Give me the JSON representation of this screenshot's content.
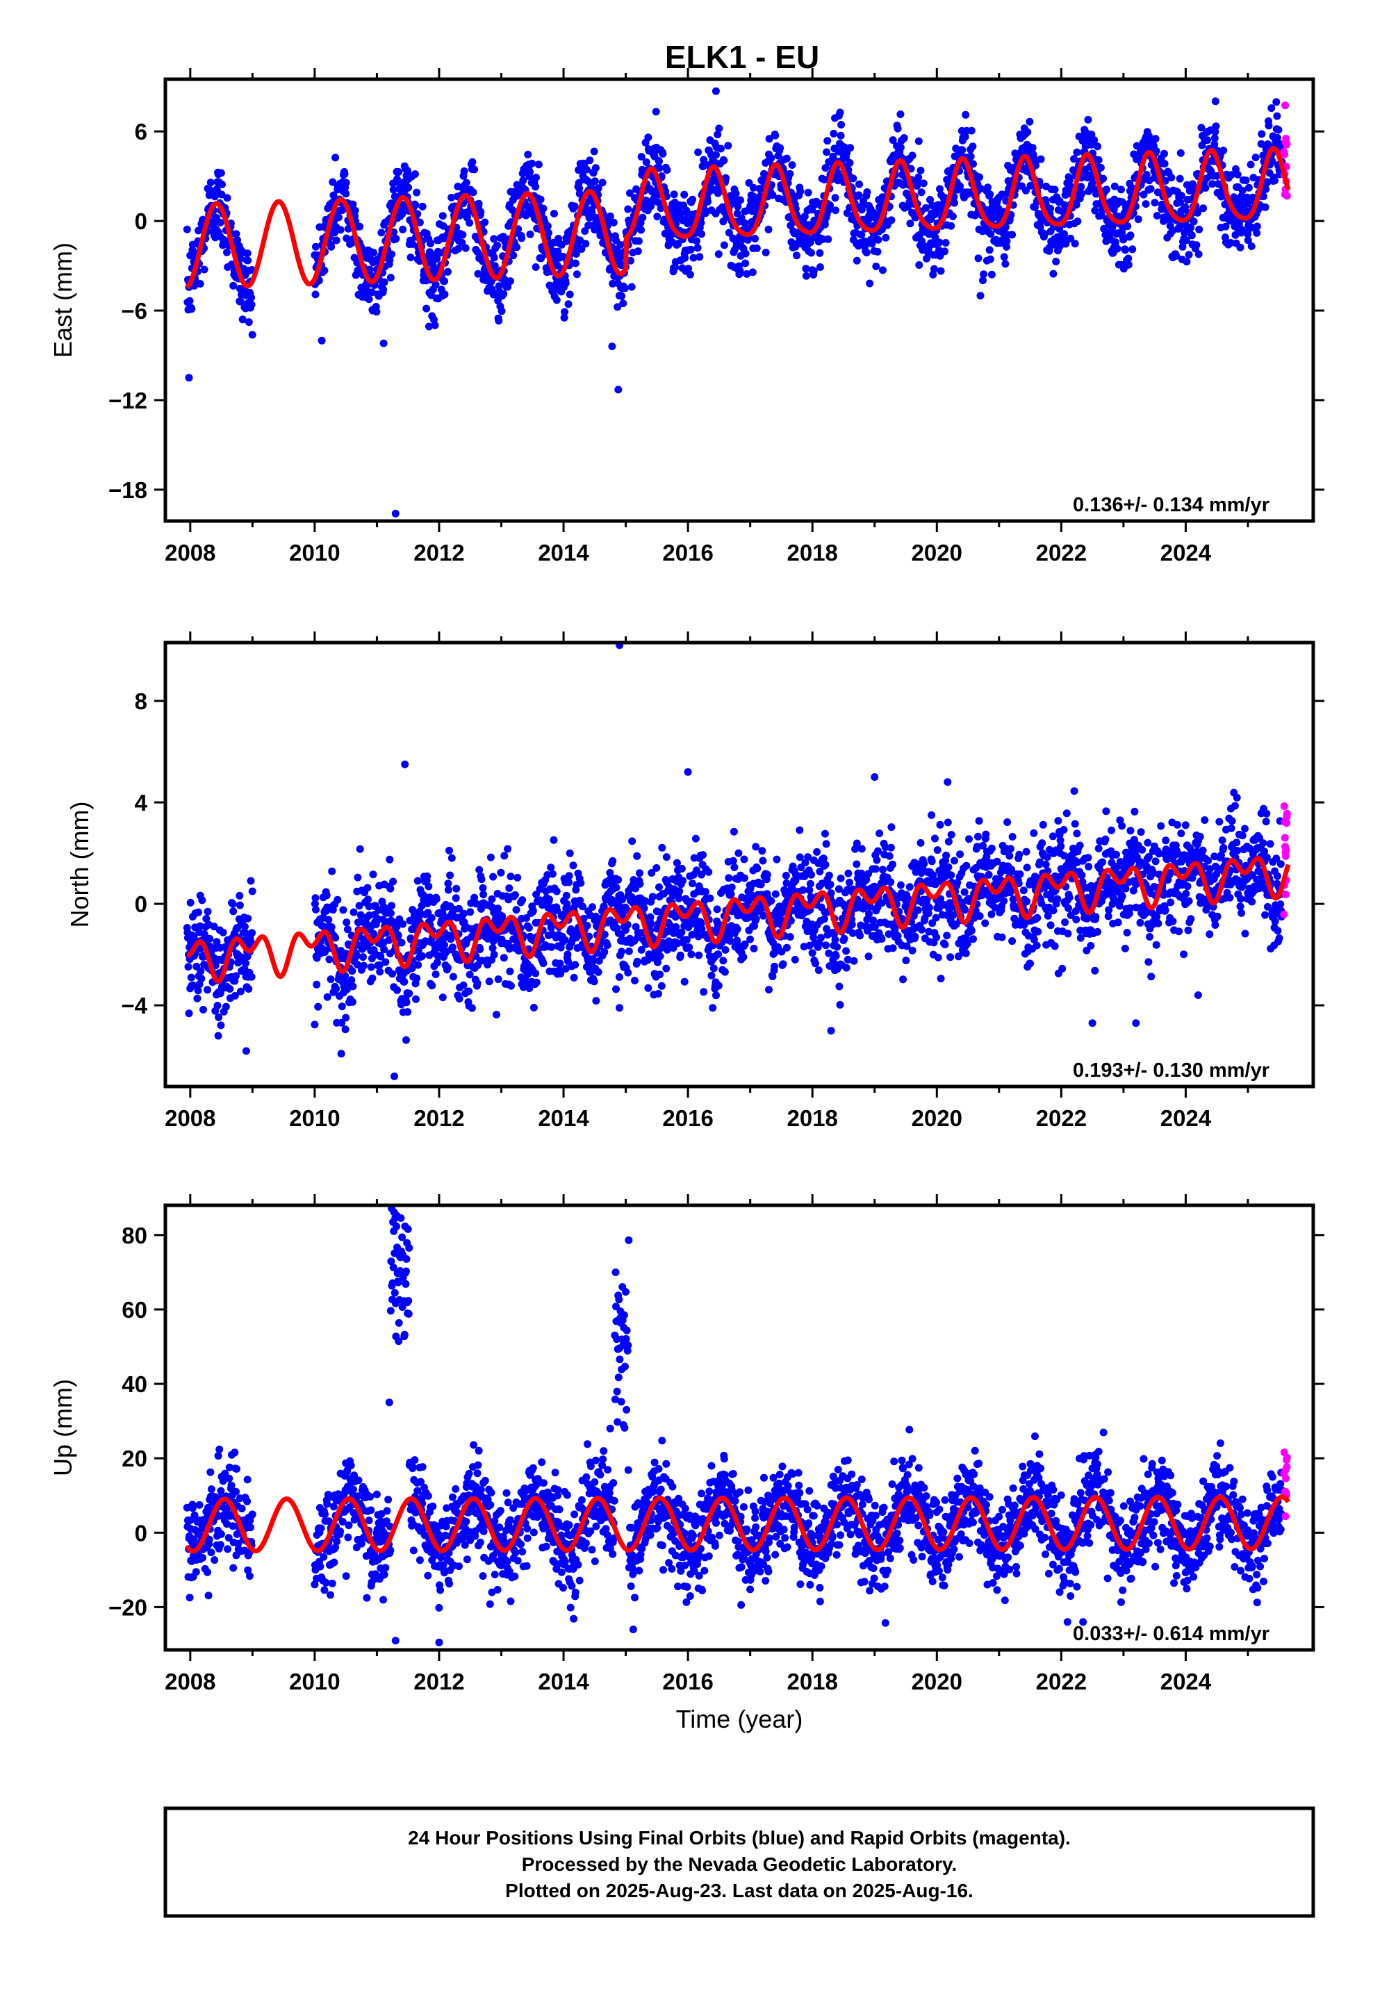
{
  "title": "ELK1 - EU",
  "colors": {
    "final": "#0000ff",
    "rapid": "#ff00ff",
    "model": "#ff0000",
    "frame": "#000000"
  },
  "chart_data": [
    {
      "type": "scatter",
      "ylabel": "East (mm)",
      "xlim": [
        2007.6,
        2026.05
      ],
      "ylim": [
        -20.1,
        9.5
      ],
      "yticks": [
        6,
        0,
        -6,
        -12,
        -18
      ],
      "ytick_labels": [
        "6",
        "0",
        "−6",
        "−12",
        "−18"
      ],
      "xticks": [
        2008,
        2010,
        2012,
        2014,
        2016,
        2018,
        2020,
        2022,
        2024
      ],
      "rate": "0.136+/- 0.134 mm/yr",
      "model": {
        "segments": [
          {
            "t0": 2007.95,
            "t1": 2015.0,
            "offset": -0.6,
            "trend": 0.136,
            "amp1": 2.8,
            "phase1": 2008.42,
            "amp2": 0.0,
            "phase2": 2008.0
          },
          {
            "t0": 2015.0,
            "t1": 2025.65,
            "offset": 0.9,
            "trend": 0.136,
            "amp1": 2.3,
            "phase1": 2016.42,
            "amp2": 0.4,
            "phase2": 2016.4
          }
        ],
        "ref_year": 2016.0
      },
      "final_segments": [
        {
          "t0": 2007.95,
          "t1": 2009.0
        },
        {
          "t0": 2010.0,
          "t1": 2025.55
        }
      ],
      "final_noise": 1.4,
      "rapid": {
        "t0": 2025.58,
        "t1": 2025.63,
        "count": 14,
        "spread": 3.0
      },
      "outliers_final": [
        [
          2007.98,
          -10.5
        ],
        [
          2011.3,
          -19.6
        ],
        [
          2014.88,
          -11.3
        ],
        [
          2014.78,
          -8.4
        ],
        [
          2016.45,
          8.7
        ],
        [
          2020.7,
          -5.0
        ]
      ]
    },
    {
      "type": "scatter",
      "ylabel": "North (mm)",
      "xlim": [
        2007.6,
        2026.05
      ],
      "ylim": [
        -7.2,
        10.3
      ],
      "yticks": [
        8,
        4,
        0,
        -4
      ],
      "ytick_labels": [
        "8",
        "4",
        "0",
        "−4"
      ],
      "xticks": [
        2008,
        2010,
        2012,
        2014,
        2016,
        2018,
        2020,
        2022,
        2024
      ],
      "rate": "0.193+/- 0.130 mm/yr",
      "model": {
        "segments": [
          {
            "t0": 2007.95,
            "t1": 2025.65,
            "offset": -0.55,
            "trend": 0.193,
            "amp1": 0.55,
            "phase1": 2008.95,
            "amp2": 0.5,
            "phase2": 2008.7
          }
        ],
        "ref_year": 2016.0
      },
      "final_segments": [
        {
          "t0": 2007.95,
          "t1": 2009.0
        },
        {
          "t0": 2010.0,
          "t1": 2025.55
        }
      ],
      "final_noise": 1.1,
      "rapid": {
        "t0": 2025.58,
        "t1": 2025.63,
        "count": 14,
        "spread": 2.6
      },
      "outliers_final": [
        [
          2014.9,
          10.2
        ],
        [
          2011.28,
          -6.8
        ],
        [
          2008.45,
          -5.2
        ],
        [
          2008.9,
          -5.8
        ],
        [
          2011.45,
          5.5
        ],
        [
          2016.0,
          5.2
        ],
        [
          2018.3,
          -5.0
        ],
        [
          2019.0,
          5.0
        ],
        [
          2022.5,
          -4.7
        ],
        [
          2023.2,
          -4.7
        ],
        [
          2024.2,
          -3.6
        ],
        [
          2014.9,
          -4.1
        ]
      ]
    },
    {
      "type": "scatter",
      "ylabel": "Up (mm)",
      "xlabel": "Time (year)",
      "xlim": [
        2007.6,
        2026.05
      ],
      "ylim": [
        -31.5,
        88.0
      ],
      "yticks": [
        80,
        60,
        40,
        20,
        0,
        -20
      ],
      "ytick_labels": [
        "80",
        "60",
        "40",
        "20",
        "0",
        "−20"
      ],
      "xticks": [
        2008,
        2010,
        2012,
        2014,
        2016,
        2018,
        2020,
        2022,
        2024
      ],
      "rate": "0.033+/- 0.614 mm/yr",
      "model": {
        "segments": [
          {
            "t0": 2007.95,
            "t1": 2025.65,
            "offset": 2.3,
            "trend": 0.033,
            "amp1": 7.0,
            "phase1": 2008.55,
            "amp2": 0.0,
            "phase2": 2008.0
          }
        ],
        "ref_year": 2016.0
      },
      "final_segments": [
        {
          "t0": 2007.95,
          "t1": 2009.0
        },
        {
          "t0": 2010.0,
          "t1": 2025.55
        }
      ],
      "final_noise": 6.0,
      "rapid": {
        "t0": 2025.58,
        "t1": 2025.63,
        "count": 14,
        "spread": 8.0
      },
      "spikes": [
        {
          "t0": 2011.22,
          "t1": 2011.52,
          "center": 68,
          "spread": 9
        },
        {
          "t0": 2014.82,
          "t1": 2015.05,
          "center": 52,
          "spread": 10
        }
      ],
      "outliers_final": [
        [
          2011.2,
          35.0
        ],
        [
          2011.3,
          -29.0
        ],
        [
          2012.0,
          -29.5
        ],
        [
          2014.75,
          28.0
        ],
        [
          2015.12,
          -26.0
        ],
        [
          2022.1,
          -24.0
        ],
        [
          2022.35,
          -24.0
        ]
      ]
    }
  ],
  "footer": {
    "lines": [
      "24 Hour Positions Using Final Orbits (blue) and Rapid Orbits (magenta).",
      "Processed by the Nevada Geodetic Laboratory.",
      "Plotted on 2025-Aug-23. Last data on 2025-Aug-16."
    ]
  }
}
